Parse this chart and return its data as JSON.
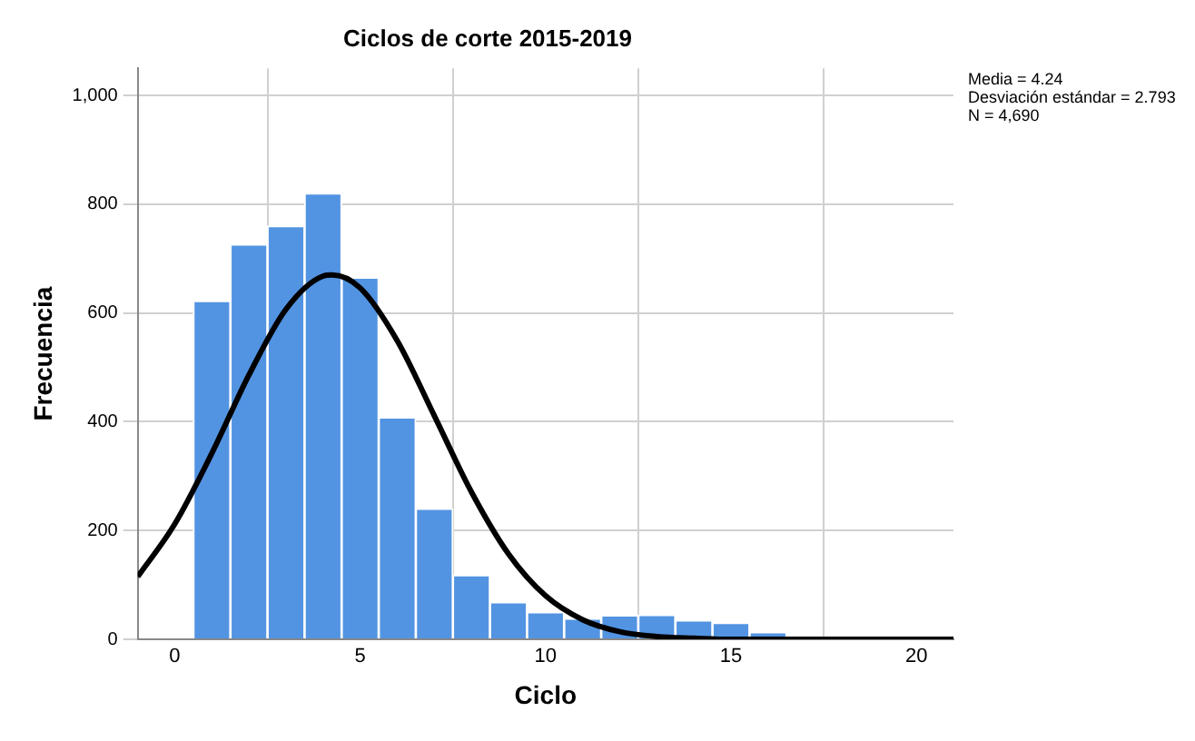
{
  "chart_data": {
    "type": "histogram",
    "title": "Ciclos de corte 2015-2019",
    "xlabel": "Ciclo",
    "ylabel": "Frecuencia",
    "bins": [
      0.5,
      1.5,
      2.5,
      3.5,
      4.5,
      5.5,
      6.5,
      7.5,
      8.5,
      9.5,
      10.5,
      11.5,
      12.5,
      13.5,
      14.5,
      15.5,
      16.5
    ],
    "values": [
      622,
      726,
      760,
      820,
      665,
      408,
      240,
      118,
      68,
      50,
      38,
      44,
      45,
      35,
      30,
      13
    ],
    "color": "#5294e2",
    "series": [
      {
        "type": "line",
        "color": "#000000",
        "x": [
          -1,
          0,
          1,
          2,
          3,
          4,
          4.24,
          5,
          6,
          7,
          8,
          9,
          10,
          11,
          12,
          13,
          14,
          15,
          16,
          17,
          18,
          19,
          20,
          21
        ],
        "values": [
          115,
          212,
          342,
          486,
          607,
          668,
          670,
          646,
          549,
          411,
          271,
          157,
          80,
          36,
          14,
          5,
          2,
          0,
          0,
          0,
          0,
          0,
          0,
          0
        ]
      }
    ],
    "xlim": [
      -1,
      21
    ],
    "xticks": [
      0,
      5,
      10,
      15,
      20
    ],
    "ylim": [
      0,
      1050
    ],
    "yticks": [
      0,
      200,
      400,
      600,
      800,
      {
        "value": 1000,
        "label": "1,000"
      }
    ],
    "grid": true,
    "legend": false,
    "marker": "none",
    "line_style": "solid",
    "annotations": [
      "Media = 4.24",
      "Desviación estándar = 2.793",
      "N = 4,690"
    ]
  }
}
